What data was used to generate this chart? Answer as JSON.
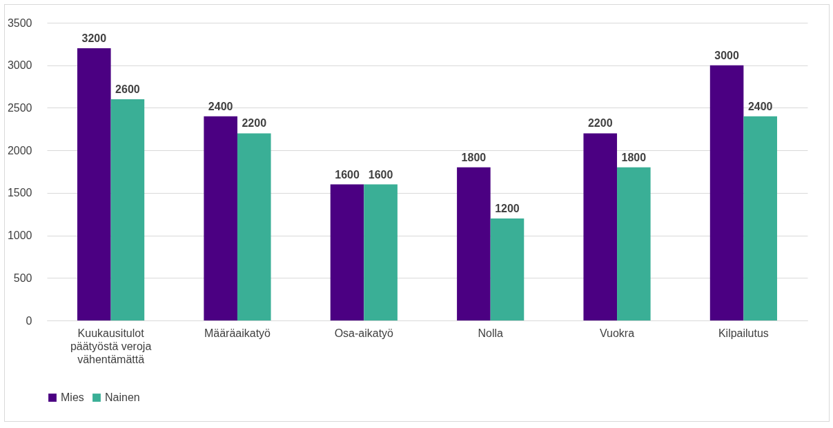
{
  "chart_data": {
    "type": "bar",
    "categories": [
      "Kuukausitulot päätyöstä veroja vähentämättä",
      "Määräaikatyö",
      "Osa-aikatyö",
      "Nolla",
      "Vuokra",
      "Kilpailutus"
    ],
    "series": [
      {
        "name": "Mies",
        "color": "#4b0082",
        "values": [
          3200,
          2400,
          1600,
          1800,
          2200,
          3000
        ]
      },
      {
        "name": "Nainen",
        "color": "#3aaf96",
        "values": [
          2600,
          2200,
          1600,
          1200,
          1800,
          2400
        ]
      }
    ],
    "ylim": [
      0,
      3500
    ],
    "yticks": [
      0,
      500,
      1000,
      1500,
      2000,
      2500,
      3000,
      3500
    ],
    "grid": "y",
    "legend": "bottom",
    "data_labels": true
  }
}
